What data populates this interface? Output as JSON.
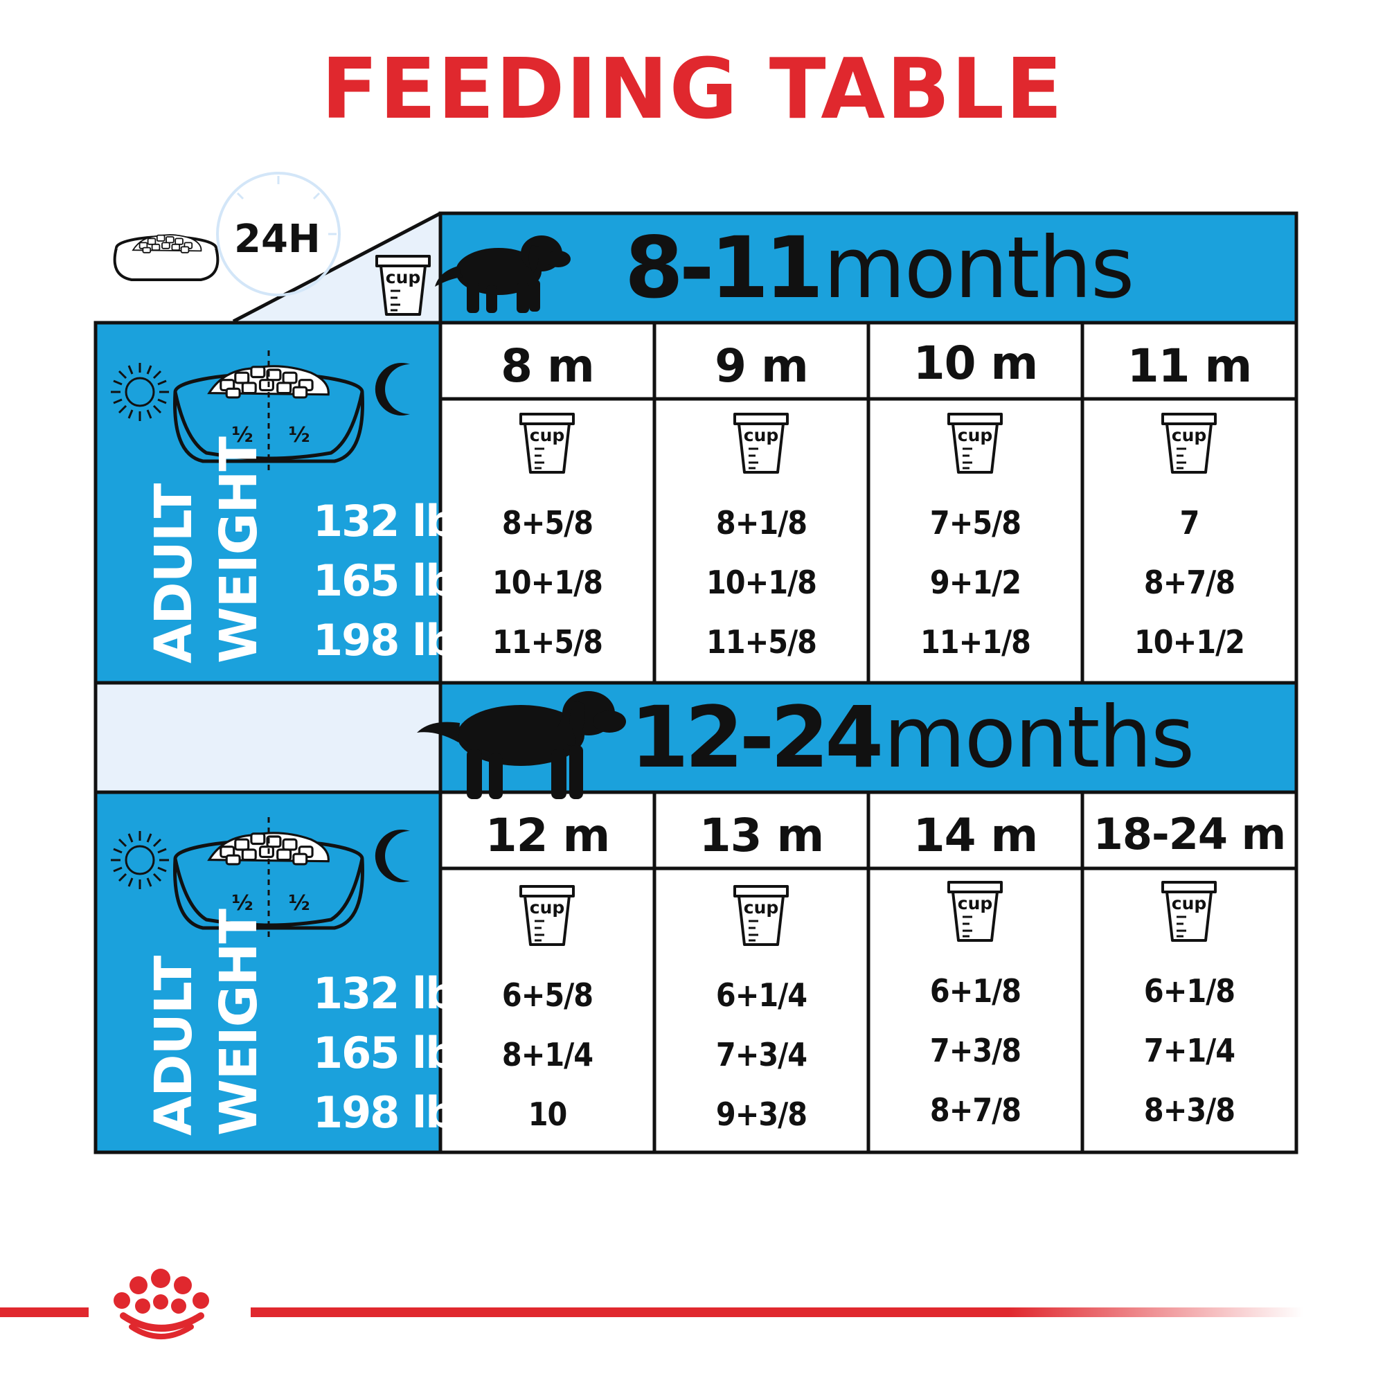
{
  "title": "FEEDING TABLE",
  "daily_label": "24H",
  "unit_label": "cup",
  "split_labels": [
    "½",
    "½"
  ],
  "weight_axis_label": [
    "ADULT",
    "WEIGHT"
  ],
  "colors": {
    "accent": "#1ba1dc",
    "title": "#e0282e",
    "pale": "#e8f1fb",
    "brand": "#e0282e"
  },
  "sections": [
    {
      "age_range": "8-11",
      "age_word": "months",
      "weights": [
        "132 lb",
        "165 lb",
        "198 lb"
      ],
      "columns": [
        {
          "label": "8 m",
          "values": [
            "8+5/8",
            "10+1/8",
            "11+5/8"
          ]
        },
        {
          "label": "9 m",
          "values": [
            "8+1/8",
            "10+1/8",
            "11+5/8"
          ]
        },
        {
          "label": "10 m",
          "values": [
            "7+5/8",
            "9+1/2",
            "11+1/8"
          ]
        },
        {
          "label": "11 m",
          "values": [
            "7",
            "8+7/8",
            "10+1/2"
          ]
        }
      ]
    },
    {
      "age_range": "12-24",
      "age_word": "months",
      "weights": [
        "132 lb",
        "165 lb",
        "198 lb"
      ],
      "columns": [
        {
          "label": "12 m",
          "values": [
            "6+5/8",
            "8+1/4",
            "10"
          ]
        },
        {
          "label": "13 m",
          "values": [
            "6+1/4",
            "7+3/4",
            "9+3/8"
          ]
        },
        {
          "label": "14 m",
          "values": [
            "6+1/8",
            "7+3/8",
            "8+7/8"
          ]
        },
        {
          "label": "18-24 m",
          "values": [
            "6+1/8",
            "7+1/4",
            "8+3/8"
          ]
        }
      ]
    }
  ]
}
